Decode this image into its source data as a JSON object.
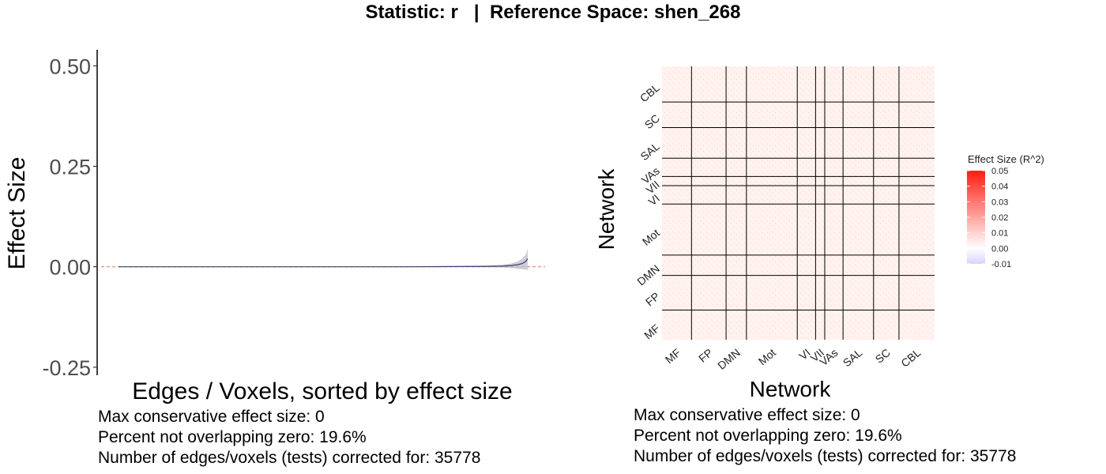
{
  "title": "Statistic: r   |  Reference Space: shen_268",
  "left_panel": {
    "captions": [
      "Max conservative effect size: 0",
      "Percent not overlapping zero: 19.6%",
      "Number of edges/voxels (tests) corrected for: 35778"
    ]
  },
  "right_panel": {
    "captions": [
      "Max conservative effect size: 0",
      "Percent not overlapping zero: 19.6%",
      "Number of edges/voxels (tests) corrected for: 35778"
    ]
  },
  "chart_data": [
    {
      "type": "line",
      "xlabel": "Edges / Voxels, sorted by effect size",
      "ylabel": "Effect Size",
      "ylim": [
        -0.27,
        0.54
      ],
      "yticks": [
        -0.25,
        0.0,
        0.25,
        0.5
      ],
      "ytick_labels": [
        "-0.25",
        "0.00",
        "0.25",
        "0.50"
      ],
      "x_range": [
        0,
        35778
      ],
      "reference_line": {
        "y": 0,
        "style": "dashed",
        "color": "#e8866e"
      },
      "series": [
        {
          "x": [
            0,
            5000,
            10000,
            15000,
            20000,
            25000,
            30000,
            32000,
            33500,
            34300,
            34900,
            35300,
            35600,
            35778
          ],
          "y": [
            0.0,
            0.0,
            0.0,
            0.0,
            0.0,
            0.0,
            0.0005,
            0.0008,
            0.0015,
            0.003,
            0.005,
            0.008,
            0.013,
            0.02
          ],
          "ci_lower": [
            0.0,
            0.0,
            0.0,
            0.0,
            0.0,
            0.0,
            -0.0005,
            -0.001,
            -0.002,
            -0.003,
            -0.005,
            -0.006,
            -0.007,
            -0.008
          ],
          "ci_upper": [
            0.0,
            0.0,
            0.0,
            0.0,
            0.0,
            0.001,
            0.002,
            0.003,
            0.005,
            0.008,
            0.013,
            0.02,
            0.03,
            0.045
          ],
          "color": "#3f3f6e",
          "band_color": "#b8b8c8"
        }
      ],
      "grid": false
    },
    {
      "type": "heatmap",
      "xlabel": "Network",
      "ylabel": "Network",
      "networks": [
        "MF",
        "FP",
        "DMN",
        "Mot",
        "VI",
        "VII",
        "VAs",
        "SAL",
        "SC",
        "CBL"
      ],
      "network_sizes": [
        29,
        34,
        20,
        50,
        18,
        9,
        18,
        30,
        25,
        35
      ],
      "legend": {
        "title": "Effect Size (R^2)",
        "tick_labels": [
          "0.05",
          "0.04",
          "0.03",
          "0.02",
          "0.01",
          "0.00",
          "-0.01"
        ],
        "tick_values": [
          0.05,
          0.04,
          0.03,
          0.02,
          0.01,
          0.0,
          -0.01
        ],
        "range": [
          -0.01,
          0.05
        ],
        "colors": {
          "low": "#d9d2ff",
          "mid": "#ffffff",
          "high": "#ff1d12"
        },
        "placement": "right"
      },
      "values_note_color": "#fff2ef"
    }
  ]
}
